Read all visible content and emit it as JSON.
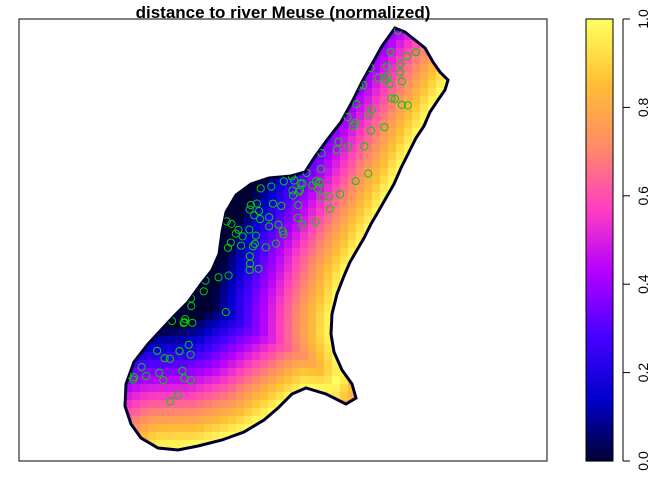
{
  "chart_data": {
    "type": "heatmap",
    "title": "distance to river Meuse (normalized)",
    "xlabel": "",
    "ylabel": "",
    "grid": false,
    "legend": "colorbar, right",
    "value_range": [
      0.0,
      1.0
    ],
    "colorbar_ticks": [
      "0.0",
      "0.2",
      "0.4",
      "0.6",
      "0.8",
      "1.0"
    ],
    "colorbar_tick_values": [
      0.0,
      0.2,
      0.4,
      0.6,
      0.8,
      1.0
    ],
    "palette": [
      "#000033",
      "#0000cc",
      "#4800ff",
      "#b200ff",
      "#ff3ec1",
      "#ff8c67",
      "#ffc034",
      "#ffff60"
    ],
    "outline_color": "#000000",
    "points_color": "#00d000",
    "points_marker": "open-circle"
  }
}
